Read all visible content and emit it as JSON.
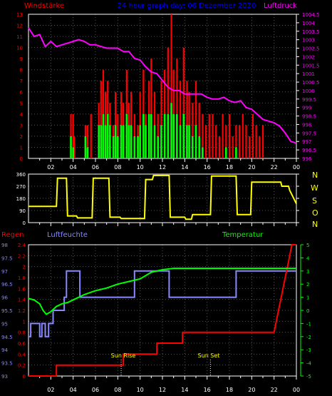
{
  "header": {
    "left_label": "Windstärke",
    "center_title": "24 hour graph day: 06 Dezember 2020",
    "right_label": "Luftdruck"
  },
  "wind_dir_axis": [
    "N",
    "W",
    "S",
    "O",
    "N"
  ],
  "bottom_header": {
    "regen": "Regen",
    "luftfeuchte": "Luftfeuchte",
    "temperatur": "Temperatur"
  },
  "markers": {
    "sunrise": "Sun Rise",
    "sunset": "Sun Set",
    "sunrise_hour": 8.3,
    "sunset_hour": 16.3
  },
  "colors": {
    "wind_gust": "#ff0000",
    "wind_avg": "#00ff00",
    "pressure": "#ff00ff",
    "direction": "#ffff00",
    "rain": "#ff0000",
    "humidity": "#8888ff",
    "temperature": "#00ff00",
    "frame": "#ffffff",
    "grid": "#555555"
  },
  "chart_data": [
    {
      "type": "bar",
      "name": "wind_pressure",
      "x_ticks": [
        "02",
        "04",
        "06",
        "08",
        "10",
        "12",
        "14",
        "16",
        "18",
        "20",
        "22",
        "00"
      ],
      "left_axis": {
        "label": "Windstärke",
        "ticks": [
          0,
          1,
          2,
          3,
          4,
          5,
          6,
          7,
          8,
          9,
          10,
          11,
          12,
          13
        ],
        "range": [
          0,
          13
        ]
      },
      "right_axis": {
        "label": "Luftdruck",
        "ticks": [
          "996",
          "996.5",
          "997",
          "997.5",
          "998",
          "998.5",
          "999",
          "999.5",
          "1000",
          "1000.5",
          "1001",
          "1001.5",
          "1002",
          "1002.5",
          "1003",
          "1003.5",
          "1004",
          "1004.5"
        ],
        "range": [
          996,
          1004.5
        ]
      },
      "pressure_x": [
        0,
        0.5,
        1,
        1.5,
        2,
        2.5,
        3,
        3.5,
        4,
        4.5,
        5,
        5.5,
        6,
        6.5,
        7,
        7.5,
        8,
        8.5,
        9,
        9.5,
        10,
        10.5,
        11,
        11.5,
        12,
        12.5,
        13,
        13.5,
        14,
        14.5,
        15,
        15.5,
        16,
        16.5,
        17,
        17.5,
        18,
        18.5,
        19,
        19.5,
        20,
        20.5,
        21,
        21.5,
        22,
        22.5,
        23,
        23.5,
        24
      ],
      "pressure_y": [
        1003.7,
        1003.2,
        1003.3,
        1002.6,
        1002.9,
        1002.6,
        1002.7,
        1002.8,
        1002.9,
        1003.0,
        1002.9,
        1002.7,
        1002.7,
        1002.6,
        1002.5,
        1002.5,
        1002.5,
        1002.3,
        1002.3,
        1001.9,
        1001.8,
        1001.4,
        1001.1,
        1001.0,
        1000.6,
        1000.2,
        1000.0,
        1000.0,
        999.8,
        999.8,
        999.8,
        999.8,
        999.6,
        999.5,
        999.5,
        999.6,
        999.4,
        999.3,
        999.4,
        999.0,
        998.9,
        998.6,
        998.3,
        998.2,
        998.1,
        997.9,
        997.5,
        997.0,
        996.9
      ],
      "series": [
        {
          "name": "gust",
          "x": [
            3.8,
            4.0,
            4.1,
            5.1,
            5.3,
            5.6,
            6.3,
            6.5,
            6.7,
            6.9,
            7.1,
            7.3,
            7.6,
            7.8,
            8.0,
            8.3,
            8.5,
            8.8,
            9.0,
            9.2,
            9.5,
            9.8,
            10.0,
            10.3,
            10.5,
            10.8,
            11.0,
            11.3,
            11.6,
            11.9,
            12.2,
            12.5,
            12.8,
            13.0,
            13.3,
            13.6,
            13.9,
            14.2,
            14.4,
            14.7,
            15.0,
            15.3,
            15.6,
            15.9,
            16.2,
            16.5,
            16.8,
            17.1,
            17.4,
            17.7,
            18.0,
            18.3,
            18.6,
            18.9,
            19.2,
            19.5,
            19.8,
            20.1,
            20.4,
            20.7,
            21.0
          ],
          "values": [
            4,
            4,
            2,
            3,
            3,
            4,
            5,
            7,
            8,
            6,
            7,
            5,
            3,
            6,
            4,
            6,
            5,
            8,
            5,
            6,
            4,
            3,
            6,
            8,
            4,
            7,
            9,
            6,
            4,
            7,
            8,
            10,
            13,
            8,
            9,
            7,
            10,
            7,
            6,
            5,
            7,
            5,
            4,
            3,
            4,
            4,
            3,
            2,
            4,
            3,
            4,
            2,
            3,
            3,
            4,
            3,
            2,
            4,
            3,
            2,
            3
          ]
        },
        {
          "name": "average",
          "x": [
            3.8,
            4.0,
            5.1,
            5.3,
            6.3,
            6.5,
            6.7,
            6.9,
            7.1,
            7.3,
            7.6,
            7.8,
            8.0,
            8.3,
            8.5,
            8.8,
            9.0,
            9.2,
            9.5,
            9.8,
            10.0,
            10.3,
            10.5,
            10.8,
            11.0,
            11.3,
            11.6,
            11.9,
            12.2,
            12.5,
            12.8,
            13.0,
            13.3,
            13.6,
            13.9,
            14.2,
            14.4,
            14.7,
            15.0,
            15.3,
            15.6,
            17.7,
            18.6
          ],
          "values": [
            2,
            1,
            2,
            1,
            3,
            3,
            4,
            3,
            4,
            3,
            2,
            3,
            2,
            3,
            3,
            4,
            3,
            3,
            2,
            2,
            3,
            4,
            3,
            4,
            4,
            3,
            2,
            3,
            4,
            4,
            5,
            4,
            4,
            3,
            4,
            3,
            3,
            2,
            3,
            2,
            1,
            1,
            1
          ]
        }
      ]
    },
    {
      "type": "line",
      "name": "wind_direction",
      "x_ticks": [
        "02",
        "04",
        "06",
        "08",
        "10",
        "12",
        "14",
        "16",
        "18",
        "20",
        "22",
        "00"
      ],
      "left_axis": {
        "ticks": [
          0,
          90,
          180,
          270,
          360
        ],
        "range": [
          0,
          360
        ]
      },
      "right_axis": {
        "ticks": [
          "N",
          "W",
          "S",
          "O",
          "N"
        ]
      },
      "x": [
        0,
        2.5,
        2.6,
        3.4,
        3.5,
        4.3,
        4.4,
        5.7,
        5.8,
        7.2,
        7.3,
        8.2,
        8.3,
        10.4,
        10.5,
        11.1,
        11.2,
        12.6,
        12.7,
        14.0,
        14.1,
        14.6,
        14.7,
        16.3,
        16.4,
        18.6,
        18.7,
        19.9,
        20.0,
        22.6,
        22.7,
        23.3,
        23.4,
        24
      ],
      "y": [
        120,
        120,
        330,
        330,
        50,
        50,
        35,
        35,
        330,
        330,
        40,
        40,
        30,
        30,
        320,
        320,
        350,
        350,
        40,
        40,
        25,
        25,
        60,
        60,
        345,
        345,
        60,
        60,
        300,
        300,
        270,
        270,
        240,
        140
      ]
    },
    {
      "type": "line",
      "name": "rain_humidity_temperature",
      "x_ticks": [
        "02",
        "04",
        "06",
        "08",
        "10",
        "12",
        "14",
        "16",
        "18",
        "20",
        "22",
        "00"
      ],
      "axes": {
        "humidity": {
          "label": "Luftfeuchte",
          "ticks": [
            "93",
            "93.5",
            "94",
            "94.5",
            "95",
            "95.5",
            "96",
            "96.5",
            "97",
            "97.5",
            "98"
          ],
          "range": [
            93,
            98
          ]
        },
        "rain": {
          "label": "Regen",
          "ticks": [
            "0",
            "0.2",
            "0.4",
            "0.6",
            "0.8",
            "1",
            "1.2",
            "1.4",
            "1.6",
            "1.8",
            "2",
            "2.2",
            "2.4"
          ],
          "range": [
            0,
            2.4
          ]
        },
        "temperature": {
          "label": "Temperatur",
          "ticks": [
            "-5",
            "-4",
            "-3",
            "-2",
            "-1",
            "0",
            "1",
            "2",
            "3",
            "4",
            "5"
          ],
          "range": [
            -5,
            5
          ]
        }
      },
      "series": [
        {
          "name": "rain",
          "x": [
            0,
            2.5,
            2.5,
            8.5,
            8.5,
            11.5,
            11.5,
            13.8,
            13.8,
            22.0,
            22.2,
            22.4,
            22.6,
            22.8,
            23.0,
            23.2,
            23.4,
            23.6,
            23.8,
            24
          ],
          "values": [
            0,
            0,
            0.2,
            0.2,
            0.4,
            0.4,
            0.6,
            0.6,
            0.8,
            0.8,
            1.0,
            1.2,
            1.4,
            1.6,
            1.8,
            2.0,
            2.2,
            2.4,
            2.4,
            2.4
          ]
        },
        {
          "name": "humidity",
          "x": [
            0,
            0.2,
            0.2,
            1.0,
            1.0,
            1.2,
            1.2,
            1.5,
            1.5,
            1.8,
            1.8,
            2.2,
            2.2,
            3.2,
            3.2,
            3.4,
            3.4,
            4.6,
            4.6,
            9.5,
            9.5,
            12.6,
            12.6,
            18.6,
            18.6,
            24
          ],
          "values": [
            94.5,
            94.5,
            95,
            95,
            94.5,
            94.5,
            95,
            95,
            94.5,
            94.5,
            95,
            95,
            95.5,
            95.5,
            96,
            96,
            97,
            97,
            96,
            96,
            97,
            97,
            96,
            96,
            97,
            97
          ]
        },
        {
          "name": "temperature",
          "x": [
            0,
            0.5,
            1.0,
            1.3,
            1.6,
            2.0,
            2.5,
            3.0,
            3.5,
            4.0,
            5.0,
            6.0,
            7.0,
            8.0,
            9.0,
            10.0,
            11.0,
            12.0,
            13.0,
            14.0,
            16.0,
            18.0,
            20.0,
            22.0,
            23.0,
            24.0
          ],
          "values": [
            0.9,
            0.8,
            0.5,
            0,
            -0.3,
            -0.1,
            0.3,
            0.5,
            0.6,
            0.8,
            1.2,
            1.5,
            1.7,
            2.0,
            2.2,
            2.4,
            2.9,
            3.1,
            3.2,
            3.2,
            3.2,
            3.2,
            3.2,
            3.2,
            3.2,
            3.2
          ]
        }
      ]
    }
  ]
}
